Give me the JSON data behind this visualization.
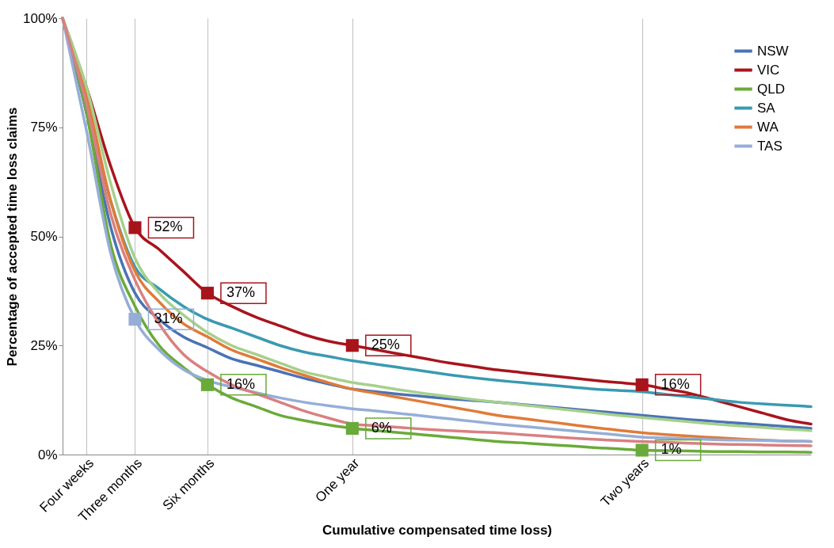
{
  "chart_data": {
    "type": "line",
    "xlabel": "Cumulative compensated time loss)",
    "ylabel": "Percentage of accepted time loss claims",
    "categories": [
      null,
      "Four weeks",
      null,
      "Three months",
      null,
      null,
      "Six months",
      null,
      null,
      null,
      null,
      null,
      "One year",
      null,
      null,
      null,
      null,
      null,
      null,
      null,
      null,
      null,
      null,
      null,
      "Two years",
      null,
      null,
      null,
      null,
      null,
      null,
      null
    ],
    "ylim": [
      0,
      100
    ],
    "yticks": [
      {
        "value": 0,
        "label": "0%"
      },
      {
        "value": 25,
        "label": "25%"
      },
      {
        "value": 50,
        "label": "50%"
      },
      {
        "value": 75,
        "label": "75%"
      },
      {
        "value": 100,
        "label": "100%"
      }
    ],
    "grid": "x",
    "legend": "top right",
    "line_style": "solid",
    "series": [
      {
        "name": "NSW",
        "color": "#4a73b5",
        "values": [
          100,
          78,
          52,
          37,
          31,
          27,
          24.5,
          22,
          20.5,
          19,
          17.5,
          16.2,
          15,
          14.4,
          13.8,
          13.3,
          12.8,
          12.4,
          12,
          11.5,
          11,
          10.5,
          10,
          9.5,
          9,
          8.5,
          8,
          7.6,
          7.2,
          6.8,
          6.4,
          6
        ]
      },
      {
        "name": "VIC",
        "color": "#a8141c",
        "values": [
          100,
          84,
          66,
          52,
          47,
          42,
          37,
          34,
          31.5,
          29.5,
          27.5,
          26,
          25,
          24,
          23,
          22,
          21,
          20.2,
          19.4,
          18.8,
          18.2,
          17.6,
          17,
          16.5,
          16,
          15,
          14,
          12.5,
          11,
          9.5,
          8,
          7
        ]
      },
      {
        "name": "QLD",
        "color": "#6aaa3a",
        "values": [
          100,
          78,
          48,
          34,
          25,
          20,
          16,
          13,
          11,
          9,
          7.8,
          6.8,
          6,
          5.5,
          5,
          4.5,
          4,
          3.5,
          3,
          2.7,
          2.3,
          2,
          1.6,
          1.3,
          1,
          0.9,
          0.8,
          0.7,
          0.7,
          0.6,
          0.6,
          0.5
        ]
      },
      {
        "name": "SA",
        "color": "#3a9ab0",
        "values": [
          100,
          80,
          58,
          43,
          38,
          34,
          31,
          29,
          27,
          25,
          23.5,
          22.5,
          21.5,
          20.7,
          19.9,
          19.1,
          18.3,
          17.6,
          17,
          16.5,
          16,
          15.5,
          15,
          14.7,
          14.4,
          13.8,
          13.2,
          12.6,
          12,
          11.6,
          11.3,
          11
        ]
      },
      {
        "name": "WA",
        "color": "#e07b39",
        "values": [
          100,
          82,
          58,
          42,
          35,
          30,
          27,
          24,
          22,
          20,
          18.2,
          16.5,
          15,
          14,
          13,
          12,
          11,
          10,
          9,
          8.3,
          7.6,
          6.9,
          6.2,
          5.6,
          5,
          4.6,
          4.2,
          3.9,
          3.6,
          3.3,
          3.1,
          3
        ]
      },
      {
        "name": "TAS",
        "color": "#95aed8",
        "values": [
          100,
          74,
          46,
          31,
          24,
          19.5,
          17,
          15.5,
          14.2,
          13,
          12,
          11.2,
          10.5,
          10,
          9.4,
          8.8,
          8.2,
          7.6,
          7,
          6.5,
          6,
          5.5,
          5,
          4.5,
          4,
          3.8,
          3.6,
          3.4,
          3.3,
          3.2,
          3.1,
          3
        ]
      },
      {
        "color": "#a6d08c",
        "values": [
          100,
          84,
          62,
          45,
          37,
          32,
          28,
          25,
          23,
          21,
          19,
          17.7,
          16.5,
          15.7,
          14.8,
          14,
          13.3,
          12.6,
          12,
          11.4,
          10.8,
          10.2,
          9.6,
          9,
          8.5,
          8,
          7.5,
          7,
          6.6,
          6.2,
          5.8,
          5.5
        ]
      },
      {
        "color": "#d98080",
        "values": [
          100,
          80,
          55,
          40,
          30,
          23,
          19,
          16,
          14,
          12,
          10,
          8.4,
          7,
          6.6,
          6.2,
          5.8,
          5.5,
          5.2,
          5,
          4.6,
          4.2,
          3.8,
          3.5,
          3.2,
          3,
          2.8,
          2.6,
          2.4,
          2.3,
          2.2,
          2.1,
          2
        ]
      },
      {
        "type": "scatter",
        "marker": "square",
        "color": "#a8141c",
        "x": [
          "Three months",
          "Six months",
          "One year",
          "Two years"
        ],
        "values": [
          52,
          37,
          25,
          16
        ],
        "value_labels": [
          "52%",
          "37%",
          "25%",
          "16%"
        ]
      },
      {
        "type": "scatter",
        "marker": "square",
        "color": "#95aed8",
        "x": [
          "Three months"
        ],
        "values": [
          31
        ],
        "value_labels": [
          "31%"
        ]
      },
      {
        "type": "scatter",
        "marker": "square",
        "color": "#6aaa3a",
        "x": [
          "Six months",
          "One year",
          "Two years"
        ],
        "values": [
          16,
          6,
          1
        ],
        "value_labels": [
          "16%",
          "6%",
          "1%"
        ]
      }
    ]
  }
}
